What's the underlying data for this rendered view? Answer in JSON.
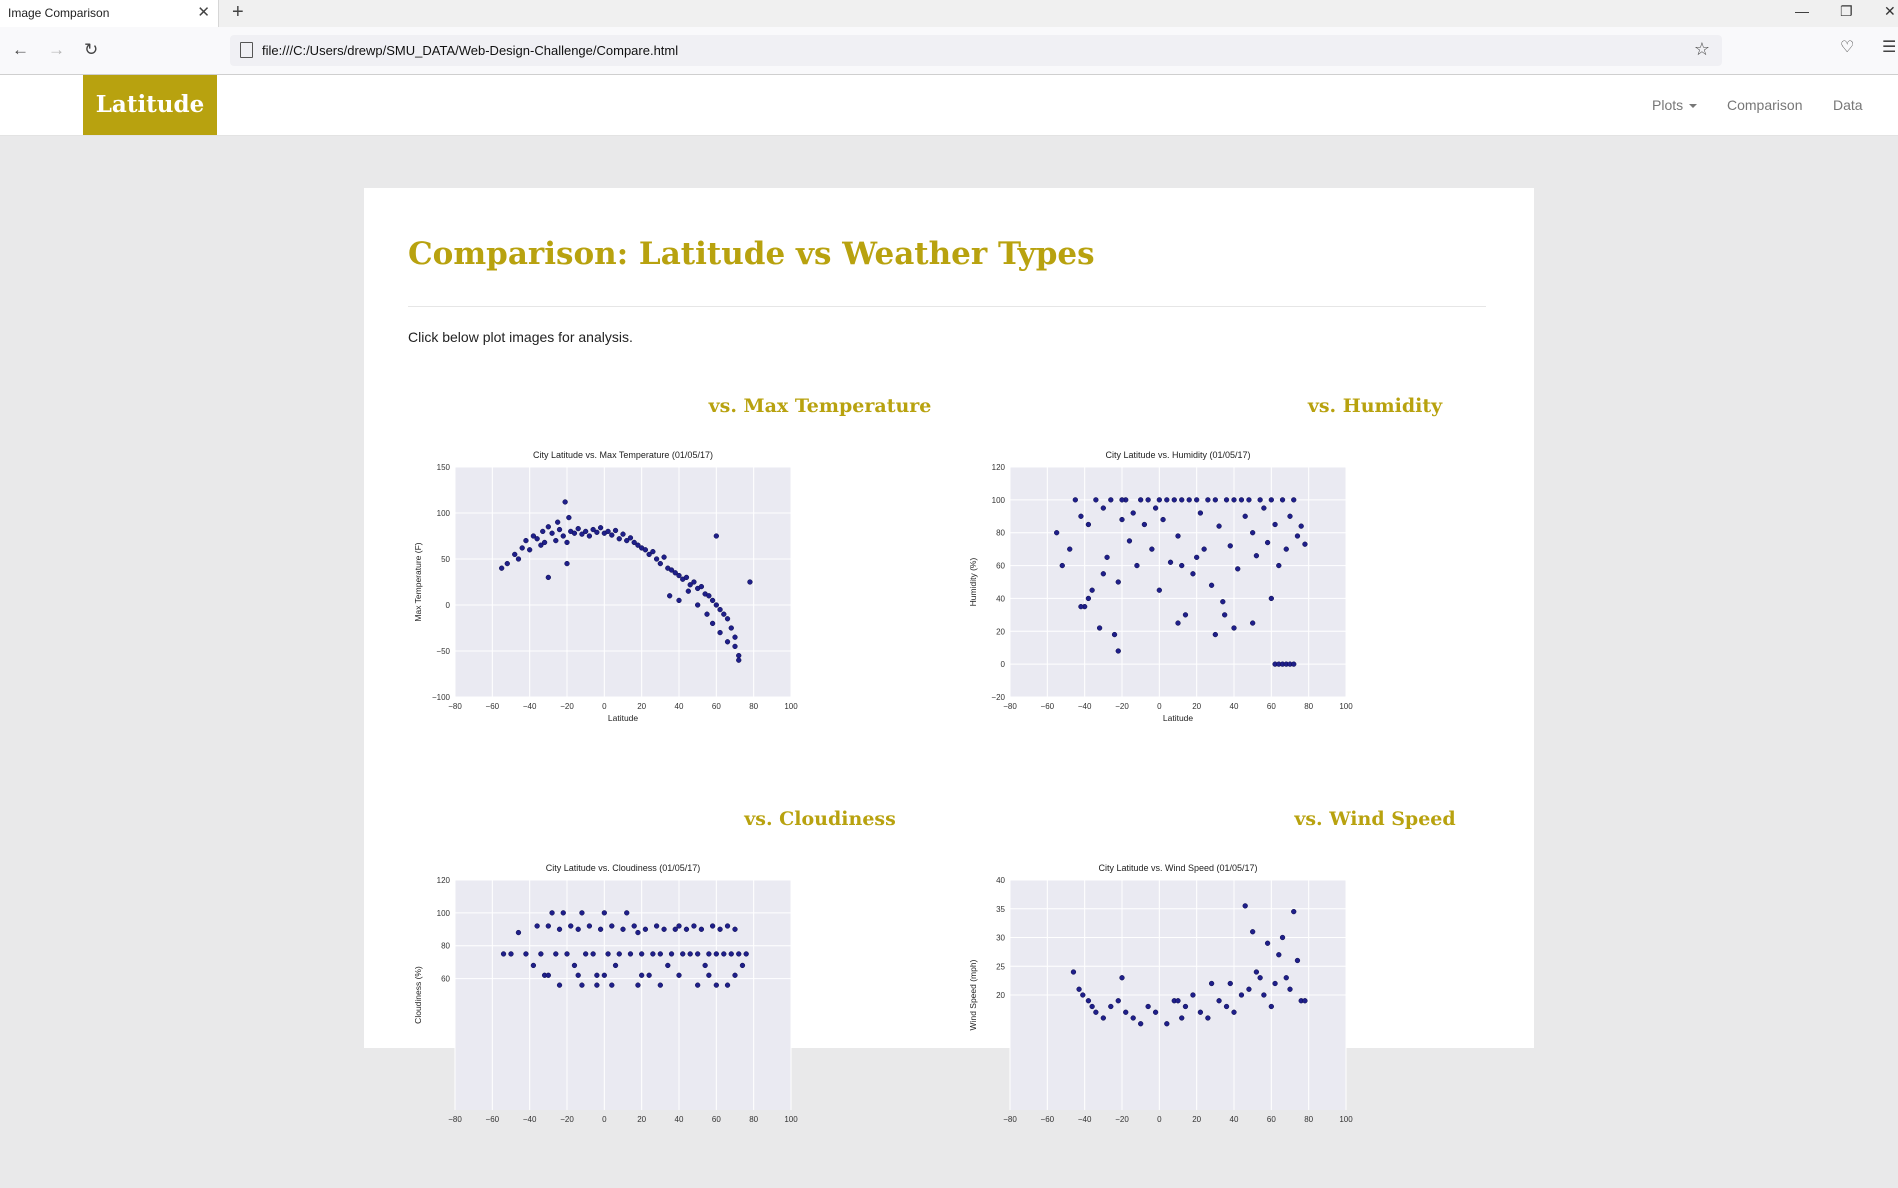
{
  "browser": {
    "tab_title": "Image Comparison",
    "url": "file:///C:/Users/drewp/SMU_DATA/Web-Design-Challenge/Compare.html"
  },
  "site": {
    "brand": "Latitude",
    "nav": {
      "plots": "Plots",
      "comparison": "Comparison",
      "data": "Data"
    }
  },
  "page": {
    "title": "Comparison: Latitude vs Weather Types",
    "intro": "Click below plot images for analysis."
  },
  "plots": [
    {
      "heading": "vs. Max Temperature"
    },
    {
      "heading": "vs. Humidity"
    },
    {
      "heading": "vs. Cloudiness"
    },
    {
      "heading": "vs. Wind Speed"
    }
  ],
  "colors": {
    "accent": "#b8a20f",
    "marker": "#1f1f8a",
    "plot_bg": "#eaeaf2"
  },
  "chart_data": [
    {
      "type": "scatter",
      "title": "City Latitude vs. Max Temperature (01/05/17)",
      "xlabel": "Latitude",
      "ylabel": "Max Temperature (F)",
      "xlim": [
        -80,
        100
      ],
      "ylim": [
        -100,
        150
      ],
      "xticks": [
        -80,
        -60,
        -40,
        -20,
        0,
        20,
        40,
        60,
        80,
        100
      ],
      "yticks": [
        -100,
        -50,
        0,
        50,
        100,
        150
      ],
      "x": [
        -55,
        -52,
        -48,
        -46,
        -44,
        -42,
        -40,
        -38,
        -36,
        -34,
        -33,
        -32,
        -30,
        -28,
        -26,
        -25,
        -24,
        -22,
        -21,
        -20,
        -19,
        -18,
        -16,
        -14,
        -12,
        -10,
        -8,
        -6,
        -4,
        -2,
        0,
        2,
        4,
        6,
        8,
        10,
        12,
        14,
        16,
        18,
        20,
        22,
        24,
        26,
        28,
        30,
        32,
        34,
        36,
        38,
        40,
        42,
        44,
        46,
        48,
        50,
        52,
        54,
        56,
        58,
        60,
        62,
        64,
        66,
        68,
        70,
        72,
        35,
        40,
        45,
        50,
        55,
        58,
        62,
        66,
        70,
        72,
        -30,
        -20,
        60,
        78
      ],
      "y": [
        40,
        45,
        55,
        50,
        62,
        70,
        60,
        75,
        72,
        65,
        80,
        68,
        85,
        78,
        70,
        90,
        82,
        75,
        112,
        68,
        95,
        80,
        78,
        83,
        77,
        80,
        75,
        82,
        79,
        84,
        78,
        80,
        76,
        81,
        72,
        77,
        70,
        73,
        68,
        65,
        62,
        60,
        55,
        58,
        50,
        45,
        52,
        40,
        38,
        35,
        32,
        28,
        30,
        22,
        25,
        18,
        20,
        12,
        10,
        5,
        0,
        -5,
        -10,
        -15,
        -25,
        -35,
        -55,
        10,
        5,
        15,
        0,
        -10,
        -20,
        -30,
        -40,
        -45,
        -60,
        30,
        45,
        75,
        25
      ]
    },
    {
      "type": "scatter",
      "title": "City Latitude vs. Humidity (01/05/17)",
      "xlabel": "Latitude",
      "ylabel": "Humidity (%)",
      "xlim": [
        -80,
        100
      ],
      "ylim": [
        -20,
        120
      ],
      "xticks": [
        -80,
        -60,
        -40,
        -20,
        0,
        20,
        40,
        60,
        80,
        100
      ],
      "yticks": [
        -20,
        0,
        20,
        40,
        60,
        80,
        100,
        120
      ],
      "x": [
        -55,
        -52,
        -48,
        -45,
        -42,
        -40,
        -38,
        -36,
        -34,
        -32,
        -30,
        -28,
        -26,
        -24,
        -22,
        -20,
        -18,
        -16,
        -14,
        -12,
        -10,
        -8,
        -6,
        -4,
        -2,
        0,
        2,
        4,
        6,
        8,
        10,
        12,
        14,
        16,
        18,
        20,
        22,
        24,
        26,
        28,
        30,
        32,
        34,
        36,
        38,
        40,
        42,
        44,
        46,
        48,
        50,
        52,
        54,
        56,
        58,
        60,
        62,
        64,
        66,
        68,
        70,
        72,
        74,
        76,
        78,
        -42,
        -38,
        -30,
        -22,
        -20,
        10,
        12,
        30,
        35,
        40,
        62,
        64,
        66,
        68,
        70,
        72,
        0,
        20,
        50,
        60
      ],
      "y": [
        80,
        60,
        70,
        100,
        90,
        35,
        85,
        45,
        100,
        22,
        95,
        65,
        100,
        18,
        8,
        88,
        100,
        75,
        92,
        60,
        100,
        85,
        100,
        70,
        95,
        100,
        88,
        100,
        62,
        100,
        78,
        100,
        30,
        100,
        55,
        100,
        92,
        70,
        100,
        48,
        100,
        84,
        38,
        100,
        72,
        100,
        58,
        100,
        90,
        100,
        80,
        66,
        100,
        95,
        74,
        100,
        85,
        60,
        100,
        70,
        90,
        100,
        78,
        84,
        73,
        35,
        40,
        55,
        50,
        100,
        25,
        60,
        18,
        30,
        22,
        0,
        0,
        0,
        0,
        0,
        0,
        45,
        65,
        25,
        40
      ]
    },
    {
      "type": "scatter",
      "title": "City Latitude vs. Cloudiness (01/05/17)",
      "xlabel": "",
      "ylabel": "Cloudiness (%)",
      "xlim": [
        -80,
        100
      ],
      "ylim": [
        -20,
        120
      ],
      "xticks": [
        -80,
        -60,
        -40,
        -20,
        0,
        20,
        40,
        60,
        80,
        100
      ],
      "yticks": [
        60,
        80,
        100,
        120
      ],
      "x": [
        -54,
        -50,
        -46,
        -42,
        -38,
        -36,
        -34,
        -32,
        -30,
        -28,
        -26,
        -24,
        -22,
        -20,
        -18,
        -16,
        -14,
        -12,
        -10,
        -8,
        -6,
        -4,
        -2,
        0,
        2,
        4,
        6,
        8,
        10,
        12,
        14,
        16,
        18,
        20,
        22,
        24,
        26,
        28,
        30,
        32,
        34,
        36,
        38,
        40,
        42,
        44,
        46,
        48,
        50,
        52,
        54,
        56,
        58,
        60,
        62,
        64,
        66,
        68,
        70,
        72,
        74,
        76,
        -24,
        -12,
        -4,
        4,
        18,
        30,
        50,
        60,
        66,
        -30,
        -14,
        0,
        20,
        40,
        56,
        70
      ],
      "y": [
        75,
        75,
        88,
        75,
        68,
        92,
        75,
        62,
        92,
        100,
        75,
        90,
        100,
        75,
        92,
        68,
        90,
        100,
        75,
        92,
        75,
        62,
        90,
        100,
        75,
        92,
        68,
        75,
        90,
        100,
        75,
        92,
        88,
        75,
        90,
        62,
        75,
        92,
        75,
        90,
        68,
        75,
        90,
        92,
        75,
        90,
        75,
        92,
        75,
        90,
        68,
        75,
        92,
        75,
        90,
        75,
        92,
        75,
        90,
        75,
        68,
        75,
        56,
        56,
        56,
        56,
        56,
        56,
        56,
        56,
        56,
        62,
        62,
        62,
        62,
        62,
        62,
        62
      ]
    },
    {
      "type": "scatter",
      "title": "City Latitude vs. Wind Speed (01/05/17)",
      "xlabel": "",
      "ylabel": "Wind Speed (mph)",
      "xlim": [
        -80,
        100
      ],
      "ylim": [
        0,
        40
      ],
      "xticks": [
        -80,
        -60,
        -40,
        -20,
        0,
        20,
        40,
        60,
        80,
        100
      ],
      "yticks": [
        20,
        25,
        30,
        35,
        40
      ],
      "x": [
        -46,
        -43,
        -41,
        -38,
        -36,
        -34,
        -30,
        -26,
        -22,
        -20,
        -18,
        -14,
        -10,
        -6,
        -2,
        4,
        8,
        10,
        12,
        14,
        18,
        22,
        26,
        28,
        32,
        36,
        38,
        40,
        44,
        46,
        48,
        50,
        52,
        54,
        56,
        58,
        60,
        62,
        64,
        66,
        68,
        70,
        72,
        74,
        76,
        78
      ],
      "y": [
        24,
        21,
        20,
        19,
        18,
        17,
        16,
        18,
        19,
        23,
        17,
        16,
        15,
        18,
        17,
        15,
        19,
        19,
        16,
        18,
        20,
        17,
        16,
        22,
        19,
        18,
        22,
        17,
        20,
        35.5,
        21,
        31,
        24,
        23,
        20,
        29,
        18,
        22,
        27,
        30,
        23,
        21,
        34.5,
        26,
        19,
        19
      ]
    }
  ]
}
